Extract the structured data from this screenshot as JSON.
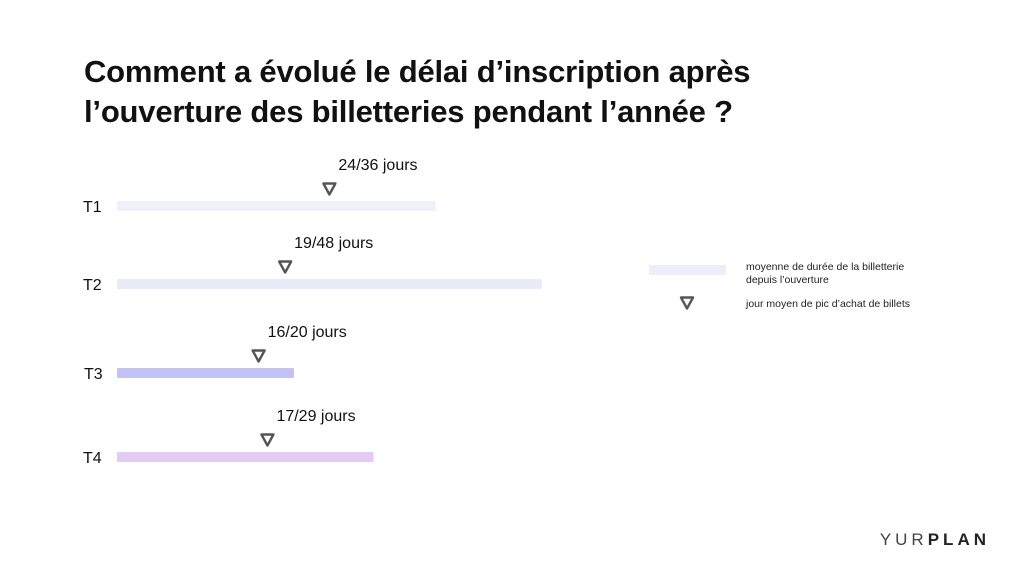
{
  "title": {
    "line1": "Comment a évolué le délai d’inscription après",
    "line2": "l’ouverture des billetteries pendant l’année ?"
  },
  "chart_data": {
    "type": "bar",
    "orientation": "horizontal",
    "categories": [
      "T1",
      "T2",
      "T3",
      "T4"
    ],
    "series": [
      {
        "name": "moyenne de durée de la billetterie depuis l’ouverture",
        "values": [
          36,
          48,
          20,
          29
        ]
      },
      {
        "name": "jour moyen  de pic d’achat de billets",
        "values": [
          24,
          19,
          16,
          17
        ]
      }
    ],
    "labels": [
      "24/36 jours",
      "19/48 jours",
      "16/20 jours",
      "17/29 jours"
    ],
    "bar_colors": [
      "#f0f0fb",
      "#eaeaf9",
      "#c4c1f4",
      "#e2ccf6"
    ],
    "marker_color": "#555555",
    "legend": {
      "placement": "right",
      "items": [
        {
          "line1": "moyenne de durée de la billetterie",
          "line2": "depuis l’ouverture",
          "color": "#eeeefa"
        },
        {
          "line1": "jour moyen  de pic d’achat de billets",
          "line2": "",
          "color": "#555555"
        }
      ]
    }
  },
  "brand": {
    "light": "YUR",
    "bold": "PLAN"
  }
}
